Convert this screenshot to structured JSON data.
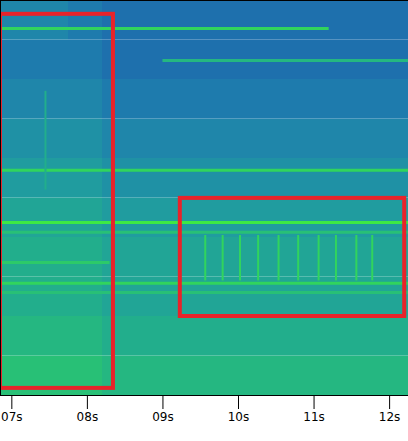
{
  "chart_data": {
    "type": "heatmap",
    "xlim": [
      6.85,
      12.25
    ],
    "ylim": [
      0,
      100
    ],
    "xticks": [
      {
        "value": 7,
        "label": "07s"
      },
      {
        "value": 8,
        "label": "08s"
      },
      {
        "value": 9,
        "label": "09s"
      },
      {
        "value": 10,
        "label": "10s"
      },
      {
        "value": 11,
        "label": "11s"
      },
      {
        "value": 12,
        "label": "12s"
      }
    ],
    "tick_labels": "x",
    "zlim": [
      0,
      10
    ],
    "x_edges": [
      6.85,
      7.3,
      7.75,
      8.2,
      8.65,
      9.1,
      9.55,
      10.0,
      10.45,
      10.9,
      11.35,
      11.8,
      12.25
    ],
    "y_edges": [
      0,
      10,
      20,
      30,
      40,
      50,
      60,
      70,
      80,
      90,
      100
    ],
    "z": [
      [
        7,
        7,
        7,
        6.5,
        6.5,
        6.5,
        6.5,
        6.5,
        6.5,
        6.5,
        6.5,
        6.5
      ],
      [
        6.5,
        6.5,
        6.5,
        6,
        6,
        6,
        6,
        6,
        6,
        6,
        6,
        6
      ],
      [
        6,
        6,
        6,
        5.5,
        5.5,
        5.5,
        5.5,
        5.5,
        5.5,
        5.5,
        5.5,
        5.5
      ],
      [
        6,
        6,
        6,
        5.5,
        5.5,
        5.5,
        5.5,
        5.5,
        5.5,
        5.5,
        5.5,
        5.5
      ],
      [
        5.5,
        5.5,
        5.5,
        5,
        5,
        5,
        5,
        5,
        5,
        5,
        5,
        5
      ],
      [
        5,
        5,
        5,
        4.5,
        4.5,
        4.5,
        4.5,
        4.5,
        4.5,
        4.5,
        4.5,
        4.5
      ],
      [
        4.5,
        4.5,
        4.5,
        4,
        4,
        4,
        4,
        4,
        4,
        4,
        4,
        4
      ],
      [
        4,
        4,
        4,
        3.5,
        3.5,
        3.5,
        3.5,
        3.5,
        3.5,
        3.5,
        3.5,
        3.5
      ],
      [
        3.5,
        3.5,
        3.5,
        3,
        3,
        3,
        3,
        3,
        3,
        3,
        3,
        3
      ],
      [
        4,
        4,
        3.5,
        3,
        3,
        3,
        3,
        3,
        3,
        3,
        3,
        3
      ]
    ],
    "tones": {
      "y": [
        92.9,
        84.8,
        57,
        43.8,
        41.3,
        33.7,
        28.4,
        26.1
      ],
      "x1": [
        6.85,
        9.0,
        6.85,
        6.85,
        6.85,
        6.85,
        6.85,
        6.85
      ],
      "x2": [
        11.2,
        12.25,
        12.25,
        12.25,
        12.25,
        8.3,
        12.25,
        12.25
      ],
      "level": [
        8,
        6.5,
        8,
        9,
        7,
        7.5,
        8,
        7
      ]
    },
    "vertical_lines": {
      "x": [
        7.445,
        9.56,
        9.79,
        10.02,
        10.26,
        10.53,
        10.79,
        11.06,
        11.29,
        11.56,
        11.77
      ],
      "y1": [
        52,
        29,
        29,
        29,
        29,
        29,
        29,
        29,
        29,
        29,
        29
      ],
      "y2": [
        77,
        40.5,
        40.5,
        40.5,
        40.5,
        40.5,
        40.5,
        40.5,
        40.5,
        40.5,
        40.5
      ],
      "level": [
        6,
        8,
        8,
        8,
        8,
        8,
        8,
        8,
        8,
        8,
        8
      ]
    },
    "annotations": {
      "color": "#e8232a",
      "boxes": [
        {
          "x1": 6.85,
          "x2": 8.345,
          "y1": 1.8,
          "y2": 96.5
        },
        {
          "x1": 9.23,
          "x2": 12.2,
          "y1": 20,
          "y2": 49.9
        }
      ]
    }
  }
}
